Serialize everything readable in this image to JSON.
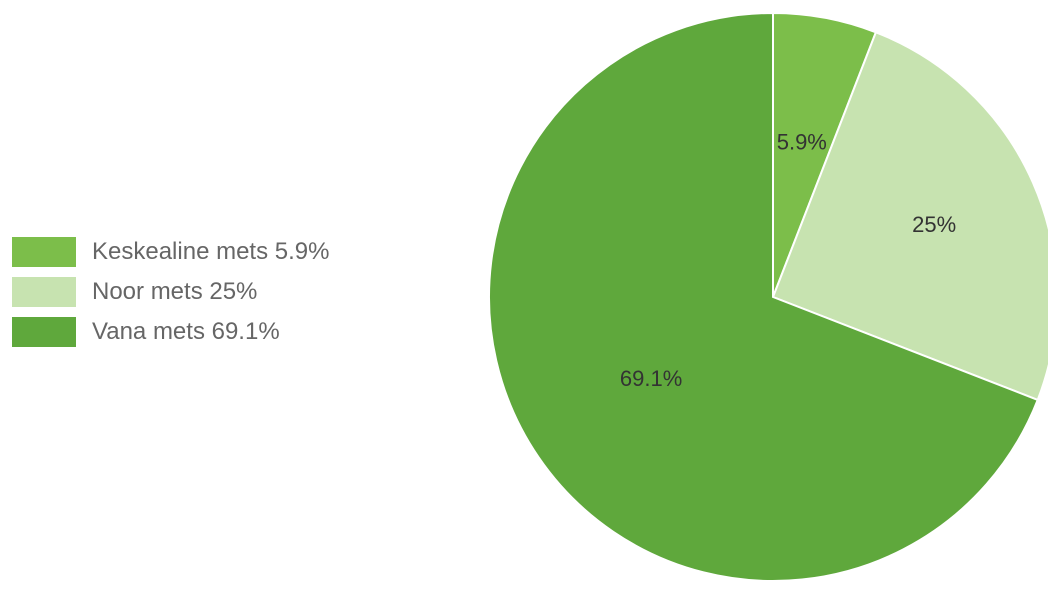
{
  "chart_data": {
    "type": "pie",
    "title": "",
    "slices": [
      {
        "name": "Keskealine mets",
        "value": 5.9,
        "label": "5.9%",
        "legend": "Keskealine mets 5.9%",
        "color": "#7cbe4a"
      },
      {
        "name": "Noor mets",
        "value": 25,
        "label": "25%",
        "legend": "Noor mets 25%",
        "color": "#c7e3b0"
      },
      {
        "name": "Vana mets",
        "value": 69.1,
        "label": "69.1%",
        "legend": "Vana mets 69.1%",
        "color": "#5fa83c"
      }
    ],
    "start_angle": "12 o'clock",
    "direction": "clockwise",
    "legend_position": "left"
  }
}
